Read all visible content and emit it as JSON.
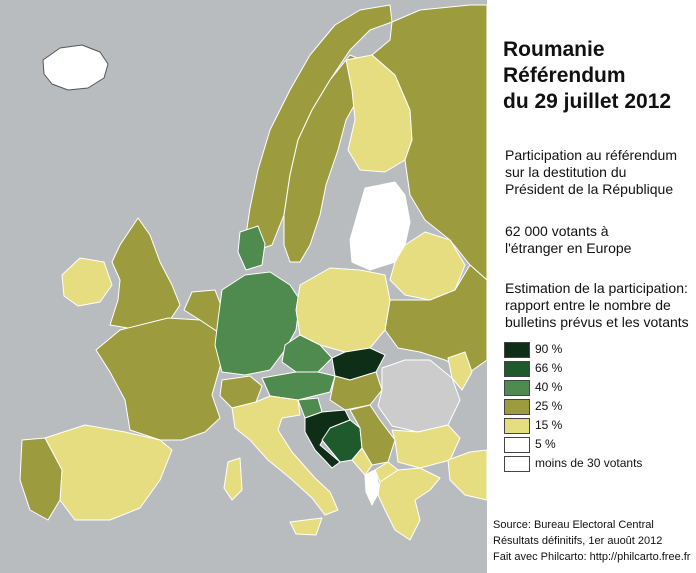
{
  "title": [
    "Roumanie",
    "Référendum",
    "du 29 juillet 2012"
  ],
  "description": [
    "Participation au référendum",
    "sur la destitution du",
    "Président de la République"
  ],
  "voters": [
    "62 000 votants à",
    "l'étranger en Europe"
  ],
  "legend_title": [
    "Estimation de la participation:",
    "rapport entre le nombre de",
    "bulletins prévus et les votants"
  ],
  "legend": [
    {
      "label": "90 %",
      "color": "#0f2e18"
    },
    {
      "label": "66 %",
      "color": "#1e5a2c"
    },
    {
      "label": "40 %",
      "color": "#4f8a4e"
    },
    {
      "label": "25 %",
      "color": "#9c9c3e"
    },
    {
      "label": "15 %",
      "color": "#e6dc80"
    },
    {
      "label": "5 %",
      "color": "#ffffff"
    },
    {
      "label": "moins de 30 votants",
      "color": "#ffffff"
    }
  ],
  "source": [
    "Source: Bureau Electoral Central",
    "Résultats définitifs, 1er auoût 2012",
    "Fait avec Philcarto: http://philcarto.free.fr"
  ],
  "colors": {
    "sea": "#b9bcbf",
    "romania": "#cccccc",
    "border": "#ffffff"
  }
}
